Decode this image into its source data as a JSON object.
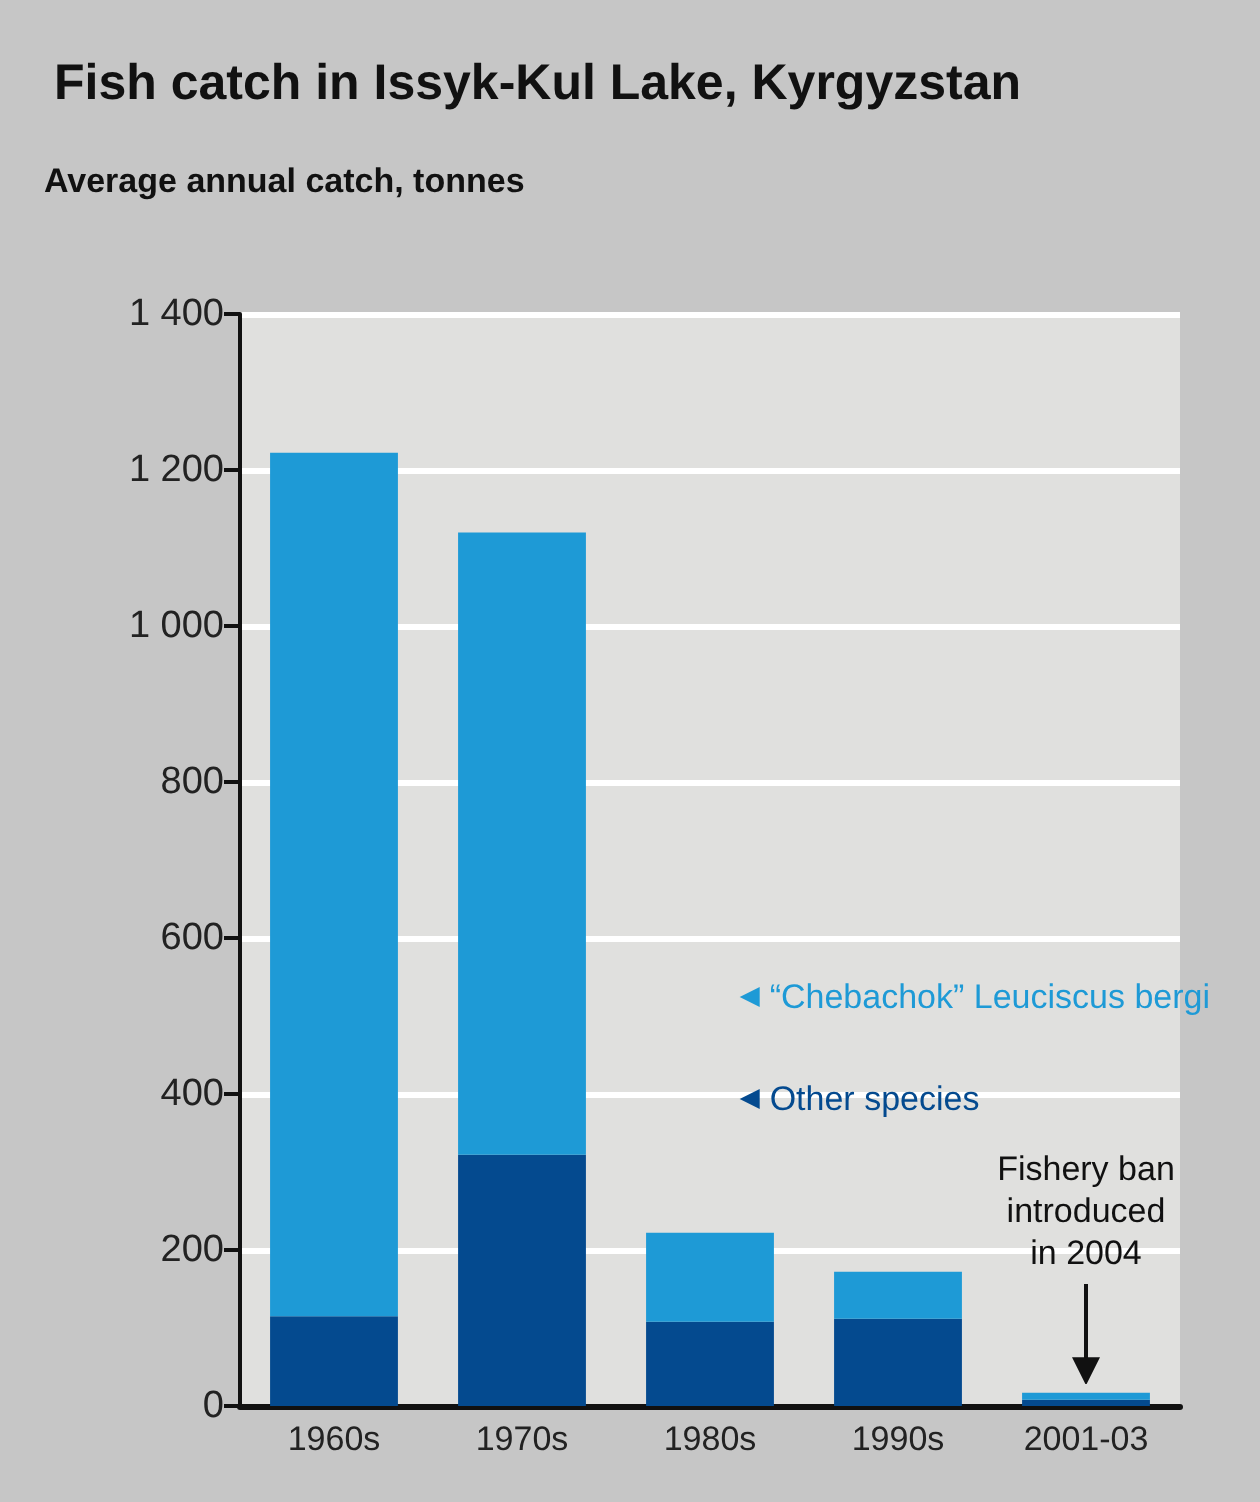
{
  "chart_data": {
    "type": "bar",
    "title": "Fish catch in Issyk-Kul Lake, Kyrgyzstan",
    "ylabel": "Average annual catch, tonnes",
    "categories": [
      "1960s",
      "1970s",
      "1980s",
      "1990s",
      "2001-03"
    ],
    "stacked": true,
    "series": [
      {
        "name": "Other species",
        "color": "#044a8f",
        "values": [
          115,
          322,
          108,
          112,
          8
        ]
      },
      {
        "name": "“Chebachok” Leuciscus bergi",
        "color": "#1e9ad6",
        "values": [
          1107,
          798,
          114,
          60,
          9
        ]
      }
    ],
    "ylim": [
      0,
      1400
    ],
    "yticks": [
      0,
      200,
      400,
      600,
      800,
      {
        "value": 1000,
        "label": "1 000"
      },
      {
        "value": 1200,
        "label": "1 200"
      },
      {
        "value": 1400,
        "label": "1 400"
      }
    ],
    "grid": "y",
    "legend": "right",
    "annotations": [
      "Fishery ban introduced in 2004"
    ]
  }
}
